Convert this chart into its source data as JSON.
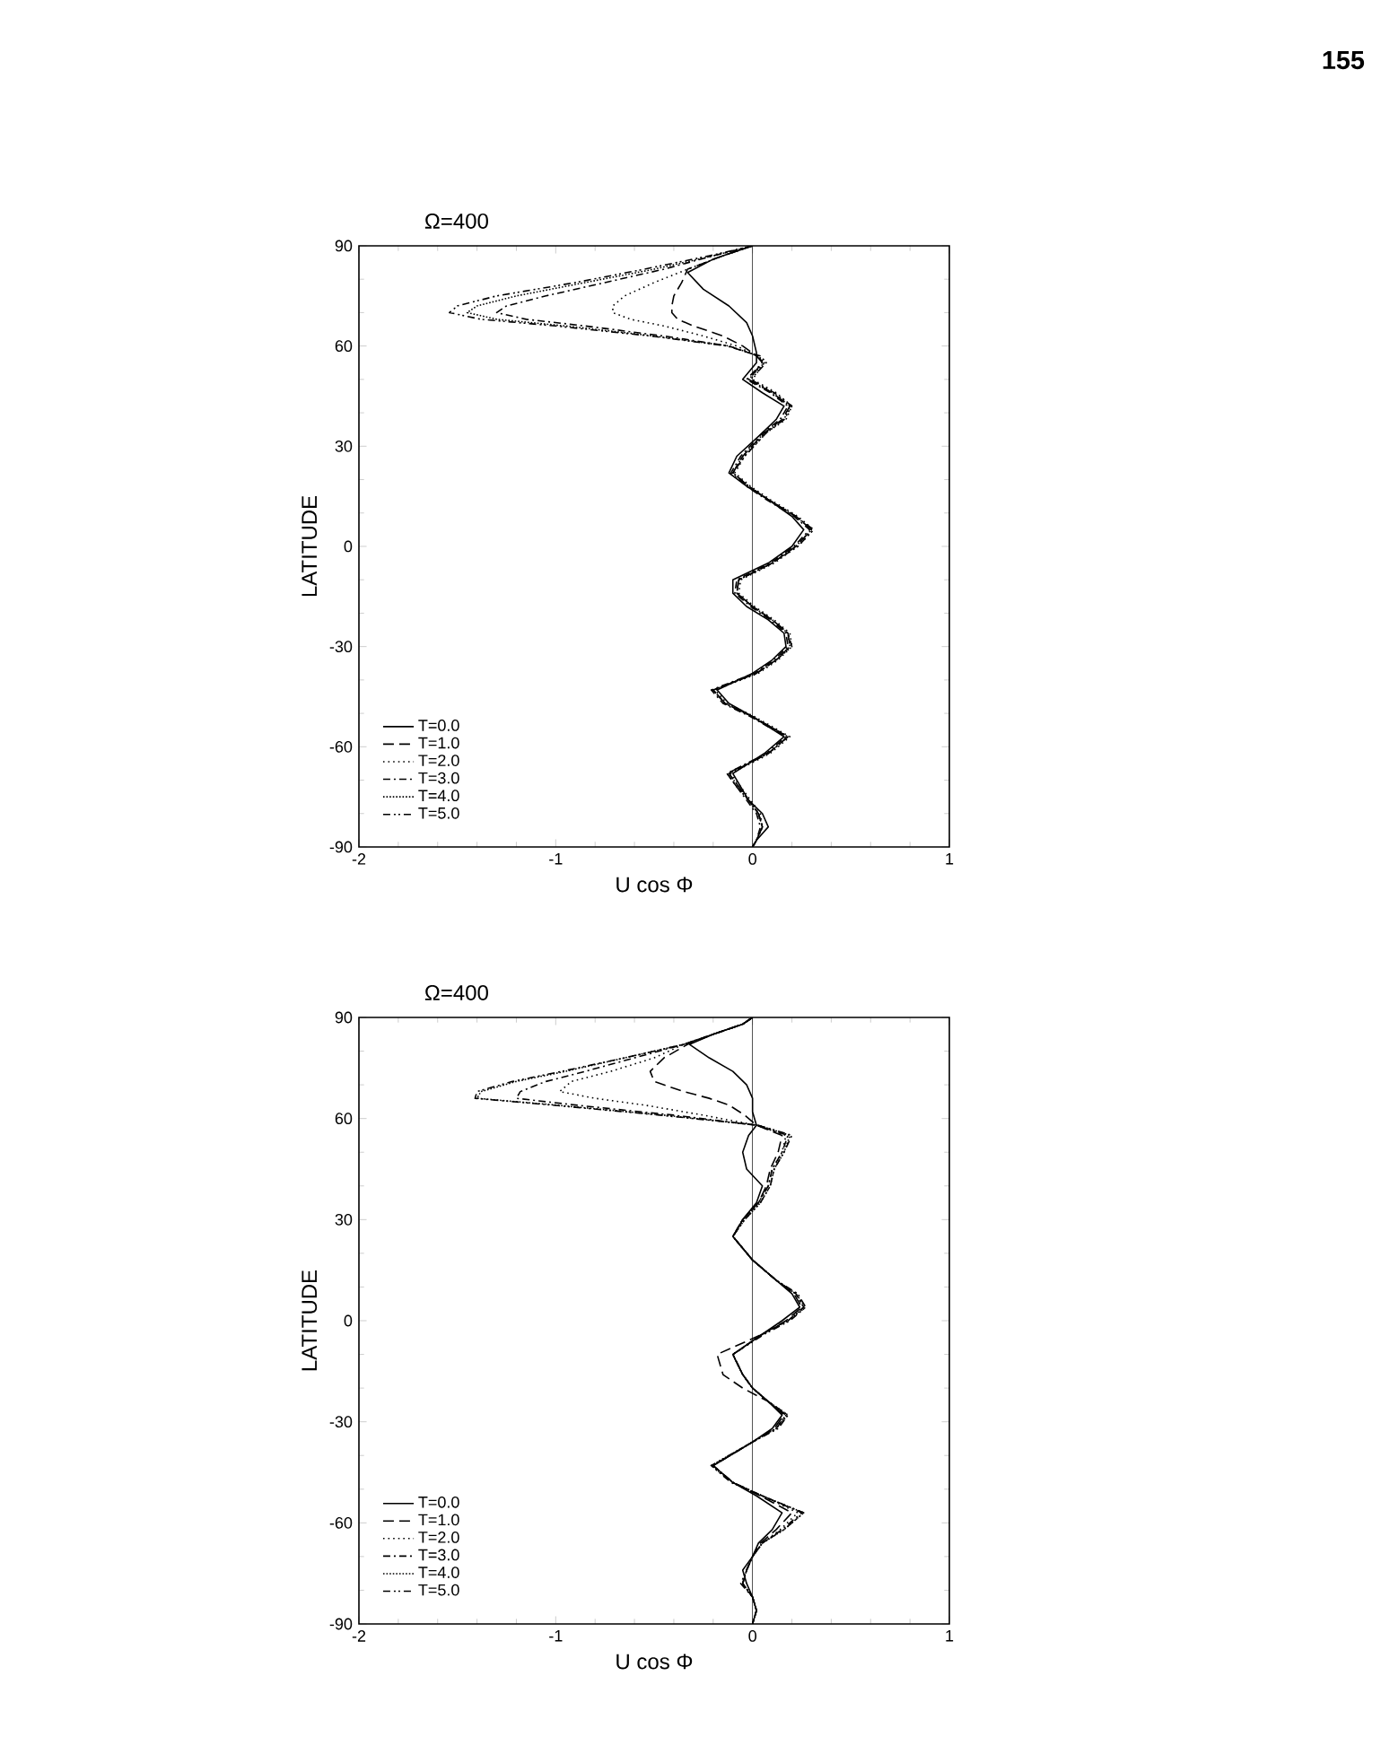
{
  "chart_data": [
    {
      "type": "line",
      "title": "Ω=400",
      "xlabel": "U cos Φ",
      "ylabel": "LATITUDE",
      "annotations": [
        "155"
      ],
      "xlim": [
        -2,
        1
      ],
      "xticks": [
        -2,
        -1,
        0,
        1
      ],
      "ylim": [
        -90,
        90
      ],
      "yticks": [
        -90,
        -60,
        -30,
        0,
        30,
        60,
        90
      ],
      "legend": "bottom left",
      "ref_lines": [
        {
          "axis": "x",
          "value": 0
        }
      ],
      "series": [
        {
          "name": "T=0.0",
          "color": "#000000",
          "line_style": "solid",
          "x": [
            0,
            -0.2,
            -0.33,
            -0.25,
            -0.12,
            -0.03,
            0,
            0.02,
            0.02,
            -0.05,
            0.05,
            0.16,
            0.12,
            0.05,
            -0.08,
            -0.12,
            -0.03,
            0.08,
            0.2,
            0.26,
            0.2,
            0.08,
            -0.1,
            -0.1,
            -0.03,
            0.08,
            0.16,
            0.17,
            0.1,
            0,
            -0.18,
            -0.12,
            0,
            0.16,
            0.06,
            -0.1,
            -0.06,
            -0.02,
            0.05,
            0.08,
            0.02,
            0
          ],
          "values": [
            90,
            86,
            82,
            77,
            72,
            67,
            63,
            58,
            55,
            50,
            46,
            42,
            38,
            34,
            27,
            22,
            18,
            14,
            9,
            5,
            0,
            -5,
            -10,
            -14,
            -18,
            -22,
            -26,
            -30,
            -34,
            -38,
            -43,
            -47,
            -51,
            -57,
            -62,
            -68,
            -72,
            -76,
            -80,
            -84,
            -88,
            -90
          ]
        },
        {
          "name": "T=1.0",
          "color": "#000000",
          "line_style": "dashed",
          "x": [
            0,
            -0.15,
            -0.33,
            -0.36,
            -0.4,
            -0.41,
            -0.41,
            -0.38,
            -0.3,
            -0.15,
            -0.05,
            0.02,
            0.05,
            -0.02,
            0.1,
            0.19,
            0.15,
            0.06,
            -0.05,
            -0.1,
            -0.02,
            0.08,
            0.22,
            0.3,
            0.22,
            0.1,
            -0.07,
            -0.08,
            0,
            0.1,
            0.18,
            0.19,
            0.12,
            0.02,
            -0.2,
            -0.14,
            0,
            0.18,
            0.08,
            -0.12,
            -0.07,
            -0.02,
            0.03,
            0.05,
            0.02,
            0
          ],
          "values": [
            90,
            87,
            83,
            79,
            75,
            72,
            70,
            68,
            66,
            63,
            60,
            57,
            55,
            50,
            46,
            42,
            38,
            34,
            27,
            22,
            18,
            14,
            9,
            5,
            0,
            -5,
            -10,
            -14,
            -18,
            -22,
            -26,
            -30,
            -34,
            -38,
            -43,
            -47,
            -51,
            -57,
            -62,
            -68,
            -72,
            -76,
            -80,
            -84,
            -88,
            -90
          ]
        },
        {
          "name": "T=2.0",
          "color": "#000000",
          "line_style": "dotted",
          "x": [
            0,
            -0.15,
            -0.33,
            -0.5,
            -0.65,
            -0.71,
            -0.71,
            -0.62,
            -0.45,
            -0.25,
            -0.08,
            0.02,
            0.06,
            0,
            0.12,
            0.2,
            0.17,
            0.07,
            -0.04,
            -0.09,
            -0.01,
            0.09,
            0.23,
            0.31,
            0.23,
            0.11,
            -0.06,
            -0.07,
            0.01,
            0.11,
            0.19,
            0.2,
            0.13,
            0.03,
            -0.19,
            -0.13,
            0.01,
            0.19,
            0.09,
            -0.11,
            -0.06,
            -0.01,
            0.04,
            0.05,
            0.02,
            0
          ],
          "values": [
            90,
            87,
            83,
            79,
            75,
            72,
            70,
            68,
            66,
            63,
            60,
            57,
            55,
            50,
            46,
            42,
            38,
            34,
            27,
            22,
            18,
            14,
            9,
            5,
            0,
            -5,
            -10,
            -14,
            -18,
            -22,
            -26,
            -30,
            -34,
            -38,
            -43,
            -47,
            -51,
            -57,
            -62,
            -68,
            -72,
            -76,
            -80,
            -84,
            -88,
            -90
          ]
        },
        {
          "name": "T=3.0",
          "color": "#000000",
          "line_style": "dashdot",
          "x": [
            0,
            -0.2,
            -0.45,
            -0.75,
            -1.05,
            -1.25,
            -1.3,
            -1.15,
            -0.85,
            -0.45,
            -0.12,
            0.03,
            0.05,
            -0.03,
            0.09,
            0.18,
            0.14,
            0.05,
            -0.06,
            -0.11,
            -0.03,
            0.07,
            0.21,
            0.29,
            0.21,
            0.09,
            -0.08,
            -0.09,
            -0.01,
            0.09,
            0.17,
            0.18,
            0.11,
            0.01,
            -0.21,
            -0.15,
            -0.01,
            0.17,
            0.07,
            -0.13,
            -0.08,
            -0.03,
            0.02,
            0.04,
            0.02,
            0
          ],
          "values": [
            90,
            87,
            83,
            79,
            75,
            72,
            70,
            68,
            66,
            63,
            60,
            57,
            55,
            50,
            46,
            42,
            38,
            34,
            27,
            22,
            18,
            14,
            9,
            5,
            0,
            -5,
            -10,
            -14,
            -18,
            -22,
            -26,
            -30,
            -34,
            -38,
            -43,
            -47,
            -51,
            -57,
            -62,
            -68,
            -72,
            -76,
            -80,
            -84,
            -88,
            -90
          ]
        },
        {
          "name": "T=4.0",
          "color": "#000000",
          "line_style": "densely dotted",
          "x": [
            0,
            -0.2,
            -0.5,
            -0.85,
            -1.2,
            -1.4,
            -1.45,
            -1.3,
            -0.95,
            -0.5,
            -0.12,
            0.03,
            0.06,
            -0.02,
            0.1,
            0.19,
            0.16,
            0.06,
            -0.05,
            -0.1,
            -0.02,
            0.08,
            0.22,
            0.3,
            0.22,
            0.1,
            -0.07,
            -0.08,
            0,
            0.1,
            0.18,
            0.19,
            0.12,
            0.02,
            -0.2,
            -0.14,
            0,
            0.18,
            0.08,
            -0.12,
            -0.07,
            -0.02,
            0.03,
            0.05,
            0.02,
            0
          ],
          "values": [
            90,
            87,
            83,
            79,
            75,
            72,
            70,
            68,
            66,
            63,
            60,
            57,
            55,
            50,
            46,
            42,
            38,
            34,
            27,
            22,
            18,
            14,
            9,
            5,
            0,
            -5,
            -10,
            -14,
            -18,
            -22,
            -26,
            -30,
            -34,
            -38,
            -43,
            -47,
            -51,
            -57,
            -62,
            -68,
            -72,
            -76,
            -80,
            -84,
            -88,
            -90
          ]
        },
        {
          "name": "T=5.0",
          "color": "#000000",
          "line_style": "dashdotdot",
          "x": [
            0,
            -0.22,
            -0.55,
            -0.9,
            -1.3,
            -1.5,
            -1.54,
            -1.38,
            -1,
            -0.52,
            -0.13,
            0.04,
            0.07,
            -0.01,
            0.11,
            0.2,
            0.16,
            0.07,
            -0.04,
            -0.1,
            -0.02,
            0.08,
            0.22,
            0.31,
            0.23,
            0.1,
            -0.07,
            -0.08,
            0,
            0.1,
            0.18,
            0.2,
            0.12,
            0.02,
            -0.2,
            -0.14,
            0,
            0.18,
            0.08,
            -0.13,
            -0.08,
            -0.02,
            0.03,
            0.05,
            0.02,
            0
          ],
          "values": [
            90,
            87,
            83,
            79,
            75,
            72,
            70,
            68,
            66,
            63,
            60,
            57,
            55,
            50,
            46,
            42,
            38,
            34,
            27,
            22,
            18,
            14,
            9,
            5,
            0,
            -5,
            -10,
            -14,
            -18,
            -22,
            -26,
            -30,
            -34,
            -38,
            -43,
            -47,
            -51,
            -57,
            -62,
            -68,
            -72,
            -76,
            -80,
            -84,
            -88,
            -90
          ]
        }
      ]
    },
    {
      "type": "line",
      "title": "Ω=400",
      "xlabel": "U cos Φ",
      "ylabel": "LATITUDE",
      "xlim": [
        -2,
        1
      ],
      "xticks": [
        -2,
        -1,
        0,
        1
      ],
      "ylim": [
        -90,
        90
      ],
      "yticks": [
        -90,
        -60,
        -30,
        0,
        30,
        60,
        90
      ],
      "legend": "bottom left",
      "ref_lines": [
        {
          "axis": "x",
          "value": 0
        }
      ],
      "series": [
        {
          "name": "T=0.0",
          "color": "#000000",
          "line_style": "solid",
          "x": [
            0,
            -0.05,
            -0.2,
            -0.32,
            -0.22,
            -0.1,
            -0.03,
            0,
            0,
            0.02,
            -0.02,
            -0.05,
            -0.03,
            0.05,
            0.02,
            -0.05,
            -0.1,
            0,
            0.12,
            0.2,
            0.24,
            0.15,
            0.05,
            -0.1,
            -0.05,
            0,
            0.08,
            0.15,
            0.1,
            0,
            -0.2,
            -0.1,
            0.02,
            0.15,
            0.1,
            0.03,
            0,
            -0.05,
            -0.03,
            0,
            0.02,
            0
          ],
          "values": [
            90,
            88,
            85,
            82,
            78,
            74,
            70,
            66,
            62,
            58,
            55,
            50,
            45,
            40,
            35,
            30,
            25,
            18,
            12,
            8,
            4,
            0,
            -4,
            -10,
            -16,
            -20,
            -24,
            -28,
            -32,
            -36,
            -43,
            -48,
            -52,
            -57,
            -62,
            -66,
            -70,
            -74,
            -78,
            -82,
            -86,
            -90
          ]
        },
        {
          "name": "T=1.0",
          "color": "#000000",
          "line_style": "dashed",
          "x": [
            0,
            -0.05,
            -0.2,
            -0.33,
            -0.45,
            -0.52,
            -0.5,
            -0.35,
            -0.22,
            -0.12,
            -0.04,
            0.02,
            0.15,
            0.13,
            0.09,
            0.07,
            0.03,
            -0.05,
            -0.1,
            0,
            0.12,
            0.21,
            0.25,
            0.17,
            0.05,
            -0.18,
            -0.15,
            -0.05,
            0.08,
            0.16,
            0.11,
            0,
            -0.2,
            -0.1,
            0.04,
            0.2,
            0.12,
            0.04,
            0,
            -0.03,
            -0.05,
            0,
            0.02,
            0
          ],
          "values": [
            90,
            88,
            85,
            82,
            78,
            74,
            71,
            68,
            66,
            64,
            61,
            58,
            55,
            50,
            45,
            40,
            35,
            30,
            25,
            18,
            12,
            8,
            4,
            0,
            -4,
            -10,
            -16,
            -20,
            -24,
            -28,
            -32,
            -36,
            -43,
            -48,
            -52,
            -57,
            -62,
            -66,
            -70,
            -74,
            -78,
            -82,
            -86,
            -90
          ]
        },
        {
          "name": "T=2.0",
          "color": "#000000",
          "line_style": "dotted",
          "x": [
            0,
            -0.05,
            -0.2,
            -0.35,
            -0.5,
            -0.72,
            -0.92,
            -0.98,
            -0.8,
            -0.55,
            -0.25,
            0.02,
            0.17,
            0.15,
            0.1,
            0.08,
            0.03,
            -0.05,
            -0.1,
            0,
            0.12,
            0.22,
            0.26,
            0.18,
            0.05,
            -0.1,
            -0.05,
            0,
            0.08,
            0.17,
            0.12,
            0,
            -0.2,
            -0.1,
            0.05,
            0.23,
            0.14,
            0.05,
            0,
            -0.03,
            -0.05,
            0,
            0.02,
            0
          ],
          "values": [
            90,
            88,
            85,
            82,
            78,
            74,
            71,
            68,
            66,
            64,
            61,
            58,
            55,
            50,
            45,
            40,
            35,
            30,
            25,
            18,
            12,
            8,
            4,
            0,
            -4,
            -10,
            -16,
            -20,
            -24,
            -28,
            -32,
            -36,
            -43,
            -48,
            -52,
            -57,
            -62,
            -66,
            -70,
            -74,
            -78,
            -82,
            -86,
            -90
          ]
        },
        {
          "name": "T=3.0",
          "color": "#000000",
          "line_style": "dashdot",
          "x": [
            0,
            -0.05,
            -0.2,
            -0.35,
            -0.6,
            -0.85,
            -1.05,
            -1.18,
            -1.2,
            -0.9,
            -0.4,
            0.02,
            0.18,
            0.15,
            0.1,
            0.08,
            0.03,
            -0.05,
            -0.1,
            0,
            0.12,
            0.22,
            0.26,
            0.18,
            0.05,
            -0.1,
            -0.05,
            0,
            0.08,
            0.17,
            0.12,
            0,
            -0.2,
            -0.1,
            0.05,
            0.25,
            0.15,
            0.05,
            0,
            -0.03,
            -0.05,
            0,
            0.02,
            0
          ],
          "values": [
            90,
            88,
            85,
            82,
            78,
            74,
            71,
            68,
            66,
            64,
            61,
            58,
            55,
            50,
            45,
            40,
            35,
            30,
            25,
            18,
            12,
            8,
            4,
            0,
            -4,
            -10,
            -16,
            -20,
            -24,
            -28,
            -32,
            -36,
            -43,
            -48,
            -52,
            -57,
            -62,
            -66,
            -70,
            -74,
            -78,
            -82,
            -86,
            -90
          ]
        },
        {
          "name": "T=4.0",
          "color": "#000000",
          "line_style": "densely dotted",
          "x": [
            0,
            -0.05,
            -0.2,
            -0.35,
            -0.65,
            -0.95,
            -1.2,
            -1.38,
            -1.4,
            -1,
            -0.45,
            0.03,
            0.19,
            0.16,
            0.11,
            0.09,
            0.04,
            -0.04,
            -0.1,
            0,
            0.12,
            0.22,
            0.27,
            0.18,
            0.05,
            -0.1,
            -0.05,
            0,
            0.08,
            0.18,
            0.12,
            0,
            -0.21,
            -0.1,
            0.05,
            0.26,
            0.16,
            0.05,
            0,
            -0.03,
            -0.05,
            0,
            0.02,
            0
          ],
          "values": [
            90,
            88,
            85,
            82,
            78,
            74,
            71,
            68,
            66,
            64,
            61,
            58,
            55,
            50,
            45,
            40,
            35,
            30,
            25,
            18,
            12,
            8,
            4,
            0,
            -4,
            -10,
            -16,
            -20,
            -24,
            -28,
            -32,
            -36,
            -43,
            -48,
            -52,
            -57,
            -62,
            -66,
            -70,
            -74,
            -78,
            -82,
            -86,
            -90
          ]
        },
        {
          "name": "T=5.0",
          "color": "#000000",
          "line_style": "dashdotdot",
          "x": [
            0,
            -0.05,
            -0.2,
            -0.35,
            -0.65,
            -0.97,
            -1.22,
            -1.4,
            -1.41,
            -1.02,
            -0.47,
            0.03,
            0.2,
            0.16,
            0.11,
            0.09,
            0.04,
            -0.04,
            -0.1,
            0,
            0.12,
            0.23,
            0.27,
            0.19,
            0.06,
            -0.1,
            -0.05,
            0,
            0.08,
            0.18,
            0.13,
            0,
            -0.21,
            -0.11,
            0.05,
            0.26,
            0.16,
            0.05,
            0,
            -0.03,
            -0.06,
            0,
            0.02,
            0
          ],
          "values": [
            90,
            88,
            85,
            82,
            78,
            74,
            71,
            68,
            66,
            64,
            61,
            58,
            55,
            50,
            45,
            40,
            35,
            30,
            25,
            18,
            12,
            8,
            4,
            0,
            -4,
            -10,
            -16,
            -20,
            -24,
            -28,
            -32,
            -36,
            -43,
            -48,
            -52,
            -57,
            -62,
            -66,
            -70,
            -74,
            -78,
            -82,
            -86,
            -90
          ]
        }
      ]
    }
  ]
}
